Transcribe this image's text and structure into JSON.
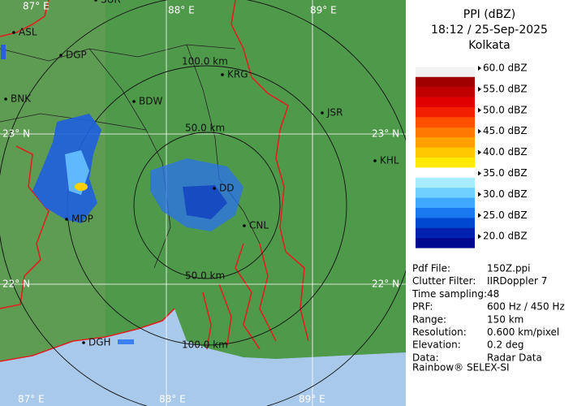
{
  "header": {
    "title": "PPI (dBZ)",
    "time": "18:12 / 25-Sep-2025",
    "station": "Kolkata"
  },
  "legend": {
    "labels": [
      "60.0 dBZ",
      "55.0 dBZ",
      "50.0 dBZ",
      "45.0 dBZ",
      "40.0 dBZ",
      "35.0 dBZ",
      "30.0 dBZ",
      "25.0 dBZ",
      "20.0 dBZ"
    ],
    "colors": [
      "#ffffff",
      "#f2f2f2",
      "#a00000",
      "#c00000",
      "#e00000",
      "#f02000",
      "#ff5000",
      "#ff7800",
      "#ffa000",
      "#ffc800",
      "#ffe800",
      "#ffffff",
      "#a8ecff",
      "#70d0ff",
      "#40a8ff",
      "#1878f0",
      "#0048d0",
      "#0020b0",
      "#000890",
      "#ffffff"
    ]
  },
  "info": {
    "rows": [
      [
        "Pdf File:",
        "150Z.ppi"
      ],
      [
        "Clutter Filter:",
        "IIRDoppler 7"
      ],
      [
        "Time sampling:48"
      ],
      [
        "PRF:",
        "600 Hz / 450 Hz"
      ],
      [
        "Range:",
        "150 km"
      ],
      [
        "Resolution:",
        "0.600 km/pixel"
      ],
      [
        "Elevation:",
        "0.2 deg"
      ],
      [
        "Data:",
        "Radar Data"
      ]
    ]
  },
  "footer": "Rainbow® SELEX-SI",
  "map": {
    "grid_labels": [
      "87° E",
      "88° E",
      "89° E",
      "23° N",
      "23° N",
      "22° N",
      "22° N",
      "87° E",
      "88° E",
      "89° E"
    ],
    "ring_labels": [
      "100.0 km",
      "50.0 km",
      "50.0 km",
      "100.0 km"
    ],
    "cities": [
      "SUR",
      "ASL",
      "DGP",
      "BNK",
      "BDW",
      "KRG",
      "JSR",
      "KHL",
      "MDP",
      "DD",
      "CNL",
      "DGH"
    ]
  }
}
